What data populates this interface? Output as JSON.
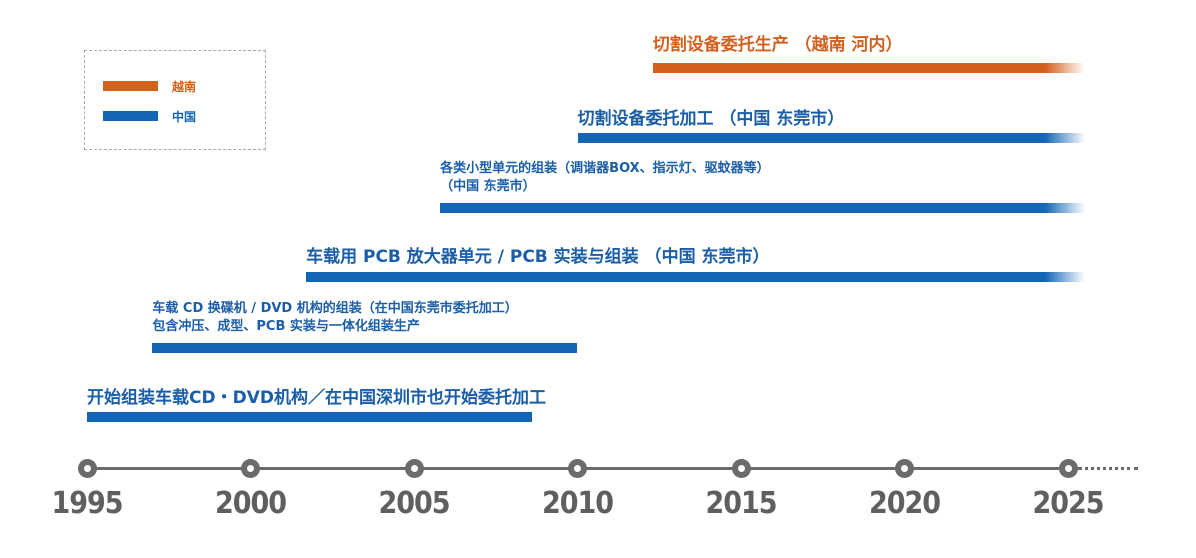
{
  "legend": {
    "items": [
      {
        "label": "越南",
        "color": "#d4601d"
      },
      {
        "label": "中国",
        "color": "#1466b5"
      }
    ]
  },
  "colors": {
    "vietnam": "#d4601d",
    "china": "#1466b5",
    "china_text": "#1b5ea8",
    "axis": "#6b6b6b"
  },
  "entries": [
    {
      "lines": [
        "切割设备委托生产 （越南 河内）"
      ],
      "country": "vietnam",
      "start": 2012.3,
      "end": "ongoing"
    },
    {
      "lines": [
        "切割设备委托加工 （中国 东莞市）"
      ],
      "country": "china",
      "start": 2010.0,
      "end": "ongoing"
    },
    {
      "lines": [
        "各类小型单元的组装（调谐器BOX、指示灯、驱蚊器等）",
        "（中国 东莞市）"
      ],
      "country": "china",
      "start": 2005.8,
      "end": "ongoing"
    },
    {
      "lines": [
        "车载用 PCB 放大器单元 / PCB 实装与组装 （中国 东莞市）"
      ],
      "country": "china",
      "start": 2001.7,
      "end": "ongoing"
    },
    {
      "lines": [
        "车载 CD 换碟机 / DVD 机构的组装（在中国东莞市委托加工）",
        "包含冲压、成型、PCB 实装与一体化组装生产"
      ],
      "country": "china",
      "start": 1997.0,
      "end": 2010.0
    },
    {
      "lines": [
        "开始组装车载CD・DVD机构／在中国深圳市也开始委托加工"
      ],
      "country": "china",
      "start": 1995.0,
      "end": 2008.6
    }
  ],
  "axis": {
    "ticks": [
      "1995",
      "2000",
      "2005",
      "2010",
      "2015",
      "2020",
      "2025"
    ]
  }
}
